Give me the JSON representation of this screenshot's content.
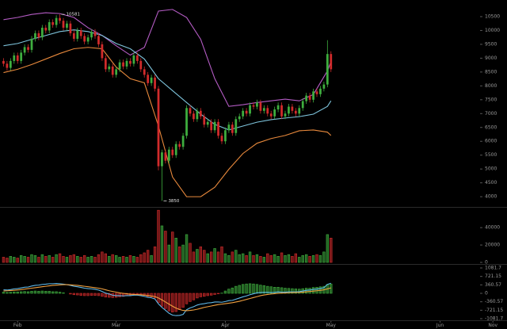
{
  "chart_data": [
    {
      "type": "candlestick",
      "x": [
        0,
        1,
        2,
        3,
        4,
        5,
        6,
        7,
        8,
        9,
        10,
        11,
        12,
        13,
        14,
        15,
        16,
        17,
        18,
        19,
        20,
        21,
        22,
        23,
        24,
        25,
        26,
        27,
        28,
        29,
        30,
        31,
        32,
        33,
        34,
        35,
        36,
        37,
        38,
        39,
        40,
        41,
        42,
        43,
        44,
        45,
        46,
        47,
        48,
        49,
        50,
        51,
        52,
        53,
        54,
        55,
        56,
        57,
        58,
        59,
        60,
        61,
        62,
        63,
        64,
        65,
        66,
        67,
        68,
        69,
        70,
        71,
        72,
        73,
        74,
        75,
        76,
        77,
        78,
        79,
        80,
        81,
        82,
        83,
        84,
        85,
        86,
        87,
        88,
        89,
        90,
        91,
        92,
        93
      ],
      "open": [
        8900,
        8800,
        8650,
        8900,
        9100,
        8900,
        9200,
        9400,
        9300,
        9700,
        9900,
        9750,
        10100,
        10000,
        10300,
        10200,
        10450,
        10350,
        10100,
        10250,
        9900,
        9700,
        10000,
        9800,
        9600,
        9750,
        9950,
        9800,
        9500,
        9000,
        8600,
        8700,
        8400,
        8600,
        8850,
        8700,
        8900,
        8800,
        9100,
        8900,
        8600,
        8400,
        8100,
        8300,
        7900,
        5100,
        5600,
        5300,
        5700,
        5500,
        5900,
        5800,
        6200,
        7200,
        7000,
        6800,
        7100,
        6900,
        6600,
        6700,
        6400,
        6700,
        6200,
        6000,
        6400,
        6600,
        6300,
        6800,
        6900,
        7100,
        7000,
        7300,
        7250,
        7400,
        7100,
        7200,
        7000,
        6900,
        7150,
        7300,
        6900,
        7000,
        7250,
        7100,
        7000,
        7200,
        7450,
        7650,
        7500,
        7800,
        7700,
        7900,
        8050,
        9150
      ],
      "high": [
        9000,
        8900,
        9000,
        9200,
        9200,
        9300,
        9500,
        9500,
        9800,
        10000,
        10000,
        10200,
        10200,
        10400,
        10400,
        10550,
        10581,
        10450,
        10350,
        10350,
        10000,
        10100,
        10100,
        9900,
        9850,
        10050,
        10050,
        9900,
        9600,
        9100,
        8800,
        8800,
        8700,
        8950,
        8950,
        9000,
        9000,
        9200,
        9200,
        9000,
        8700,
        8500,
        8400,
        8400,
        8000,
        5700,
        5700,
        5800,
        5800,
        6000,
        6000,
        6300,
        7300,
        7300,
        7100,
        7200,
        7200,
        7000,
        6800,
        6800,
        6800,
        6800,
        6300,
        6500,
        6700,
        6700,
        6900,
        7000,
        7200,
        7200,
        7400,
        7400,
        7500,
        7500,
        7300,
        7300,
        7100,
        7250,
        7400,
        7400,
        7100,
        7350,
        7350,
        7200,
        7300,
        7550,
        7750,
        7750,
        7900,
        7900,
        8000,
        8150,
        9650,
        9250
      ],
      "low": [
        8700,
        8550,
        8550,
        8800,
        8800,
        8800,
        9100,
        9200,
        9200,
        9600,
        9650,
        9650,
        9900,
        9900,
        10100,
        10100,
        10250,
        10000,
        10000,
        9800,
        9600,
        9600,
        9700,
        9500,
        9500,
        9650,
        9700,
        9400,
        8900,
        8500,
        8500,
        8300,
        8300,
        8500,
        8600,
        8600,
        8700,
        8700,
        8800,
        8500,
        8300,
        8000,
        8000,
        7800,
        4950,
        3850,
        5200,
        5200,
        5400,
        5400,
        5700,
        5700,
        6100,
        6900,
        6700,
        6700,
        6800,
        6500,
        6500,
        6300,
        6300,
        6100,
        5900,
        5900,
        6300,
        6200,
        6200,
        6700,
        6800,
        6900,
        6900,
        7150,
        7150,
        7000,
        7000,
        6900,
        6800,
        6800,
        7050,
        6800,
        6800,
        6900,
        7000,
        6900,
        6900,
        7100,
        7350,
        7400,
        7400,
        7600,
        7600,
        7800,
        7950,
        8500
      ],
      "close": [
        8800,
        8650,
        8900,
        9100,
        8900,
        9200,
        9400,
        9300,
        9700,
        9900,
        9750,
        10100,
        10000,
        10300,
        10200,
        10450,
        10350,
        10100,
        10250,
        9900,
        9700,
        10000,
        9800,
        9600,
        9750,
        9950,
        9800,
        9500,
        9000,
        8600,
        8700,
        8400,
        8600,
        8850,
        8700,
        8900,
        8800,
        9100,
        8900,
        8600,
        8400,
        8100,
        8300,
        7900,
        5100,
        5600,
        5300,
        5700,
        5500,
        5900,
        5800,
        6200,
        7200,
        7000,
        6800,
        7100,
        6900,
        6600,
        6700,
        6400,
        6700,
        6200,
        6000,
        6400,
        6600,
        6300,
        6800,
        6900,
        7100,
        7000,
        7300,
        7250,
        7400,
        7100,
        7200,
        7000,
        6900,
        7150,
        7300,
        6900,
        7000,
        7250,
        7100,
        7000,
        7200,
        7450,
        7650,
        7500,
        7800,
        7700,
        7900,
        8050,
        9150,
        8600
      ],
      "up_color": "#3fae3f",
      "down_color": "#d12b2b",
      "xlim": [
        -1,
        143
      ],
      "ylim": [
        3660,
        11100
      ],
      "yticks": [
        4000,
        4500,
        5000,
        5500,
        6000,
        6500,
        7000,
        7500,
        8000,
        8500,
        9000,
        9500,
        10000,
        10500
      ],
      "bands": {
        "x": [
          0,
          4,
          8,
          12,
          16,
          20,
          24,
          28,
          32,
          36,
          40,
          44,
          48,
          52,
          56,
          60,
          64,
          68,
          72,
          76,
          80,
          84,
          88,
          92,
          93
        ],
        "series": [
          {
            "color": "#b45cc4",
            "values": [
              10390,
              10470,
              10580,
              10640,
              10610,
              10470,
              10100,
              9820,
              9450,
              9110,
              9390,
              10700,
              10760,
              10470,
              9680,
              8260,
              7260,
              7320,
              7400,
              7460,
              7520,
              7460,
              7690,
              8540,
              8880
            ]
          },
          {
            "color": "#7ec4dc",
            "values": [
              9450,
              9530,
              9680,
              9820,
              9960,
              10020,
              9960,
              9820,
              9530,
              9340,
              8970,
              8260,
              7830,
              7400,
              6980,
              6610,
              6410,
              6550,
              6690,
              6780,
              6840,
              6890,
              6980,
              7260,
              7460
            ]
          },
          {
            "color": "#e8893c",
            "values": [
              8480,
              8600,
              8770,
              8970,
              9170,
              9340,
              9390,
              9340,
              8680,
              8260,
              8110,
              6550,
              4710,
              4000,
              4000,
              4340,
              4990,
              5560,
              5930,
              6100,
              6210,
              6380,
              6410,
              6330,
              6210
            ]
          }
        ]
      },
      "annotations": [
        {
          "x": 16,
          "y": 10581
        },
        {
          "x": 45,
          "y": 3850
        }
      ]
    },
    {
      "type": "bar",
      "x": [
        0,
        1,
        2,
        3,
        4,
        5,
        6,
        7,
        8,
        9,
        10,
        11,
        12,
        13,
        14,
        15,
        16,
        17,
        18,
        19,
        20,
        21,
        22,
        23,
        24,
        25,
        26,
        27,
        28,
        29,
        30,
        31,
        32,
        33,
        34,
        35,
        36,
        37,
        38,
        39,
        40,
        41,
        42,
        43,
        44,
        45,
        46,
        47,
        48,
        49,
        50,
        51,
        52,
        53,
        54,
        55,
        56,
        57,
        58,
        59,
        60,
        61,
        62,
        63,
        64,
        65,
        66,
        67,
        68,
        69,
        70,
        71,
        72,
        73,
        74,
        75,
        76,
        77,
        78,
        79,
        80,
        81,
        82,
        83,
        84,
        85,
        86,
        87,
        88,
        89,
        90,
        91,
        92,
        93
      ],
      "values": [
        6000,
        5000,
        7000,
        6000,
        5000,
        8000,
        7000,
        6000,
        9000,
        8000,
        6000,
        9000,
        7000,
        8000,
        6000,
        9000,
        10000,
        7000,
        6000,
        8000,
        9000,
        7000,
        6000,
        8000,
        6000,
        7000,
        6000,
        9000,
        12000,
        10000,
        7000,
        9000,
        8000,
        6000,
        7000,
        6000,
        8000,
        7000,
        6000,
        9000,
        11000,
        14000,
        8000,
        18000,
        60000,
        42000,
        36000,
        20000,
        35000,
        28000,
        18000,
        20000,
        32000,
        22000,
        12000,
        15000,
        18000,
        14000,
        10000,
        12000,
        16000,
        12000,
        18000,
        10000,
        8000,
        12000,
        14000,
        9000,
        10000,
        8000,
        12000,
        8000,
        9000,
        7000,
        6000,
        10000,
        8000,
        9000,
        7000,
        11000,
        8000,
        9000,
        7000,
        10000,
        6000,
        8000,
        9000,
        7000,
        8000,
        9000,
        8000,
        12000,
        32000,
        28000
      ],
      "xlim": [
        -1,
        143
      ],
      "ylim": [
        0,
        62000
      ],
      "yticks": [
        0,
        20000,
        40000
      ]
    },
    {
      "type": "macd",
      "x": [
        0,
        1,
        2,
        3,
        4,
        5,
        6,
        7,
        8,
        9,
        10,
        11,
        12,
        13,
        14,
        15,
        16,
        17,
        18,
        19,
        20,
        21,
        22,
        23,
        24,
        25,
        26,
        27,
        28,
        29,
        30,
        31,
        32,
        33,
        34,
        35,
        36,
        37,
        38,
        39,
        40,
        41,
        42,
        43,
        44,
        45,
        46,
        47,
        48,
        49,
        50,
        51,
        52,
        53,
        54,
        55,
        56,
        57,
        58,
        59,
        60,
        61,
        62,
        63,
        64,
        65,
        66,
        67,
        68,
        69,
        70,
        71,
        72,
        73,
        74,
        75,
        76,
        77,
        78,
        79,
        80,
        81,
        82,
        83,
        84,
        85,
        86,
        87,
        88,
        89,
        90,
        91,
        92,
        93
      ],
      "series": [
        {
          "color": "#5fb8e8",
          "values": [
            150,
            140,
            160,
            190,
            200,
            230,
            260,
            270,
            310,
            340,
            350,
            380,
            390,
            410,
            410,
            420,
            410,
            390,
            370,
            340,
            300,
            280,
            250,
            220,
            200,
            190,
            170,
            140,
            80,
            10,
            -30,
            -80,
            -100,
            -100,
            -110,
            -100,
            -100,
            -80,
            -80,
            -100,
            -130,
            -170,
            -190,
            -240,
            -450,
            -600,
            -720,
            -850,
            -930,
            -950,
            -940,
            -900,
            -700,
            -620,
            -570,
            -500,
            -460,
            -440,
            -410,
            -400,
            -370,
            -370,
            -380,
            -350,
            -310,
            -300,
            -250,
            -200,
            -150,
            -110,
            -60,
            -20,
            20,
            30,
            40,
            40,
            30,
            40,
            60,
            50,
            50,
            60,
            60,
            60,
            70,
            100,
            130,
            140,
            170,
            180,
            210,
            240,
            380,
            430
          ]
        },
        {
          "color": "#f0a040",
          "values": [
            100,
            110,
            120,
            130,
            140,
            160,
            180,
            200,
            220,
            240,
            260,
            280,
            300,
            320,
            340,
            350,
            360,
            370,
            370,
            360,
            350,
            340,
            320,
            300,
            280,
            260,
            240,
            220,
            190,
            150,
            110,
            80,
            50,
            20,
            0,
            -20,
            -40,
            -50,
            -55,
            -60,
            -75,
            -95,
            -115,
            -140,
            -200,
            -280,
            -370,
            -460,
            -550,
            -630,
            -690,
            -730,
            -740,
            -730,
            -710,
            -680,
            -640,
            -600,
            -570,
            -540,
            -510,
            -480,
            -460,
            -440,
            -420,
            -400,
            -370,
            -340,
            -300,
            -260,
            -220,
            -180,
            -140,
            -100,
            -70,
            -50,
            -30,
            -15,
            0,
            10,
            15,
            25,
            30,
            35,
            40,
            50,
            65,
            80,
            95,
            110,
            130,
            150,
            190,
            230
          ]
        }
      ],
      "histogram": [
        50,
        40,
        50,
        60,
        60,
        70,
        80,
        70,
        90,
        100,
        90,
        100,
        90,
        90,
        70,
        70,
        50,
        20,
        0,
        -30,
        -60,
        -70,
        -90,
        -100,
        -100,
        -90,
        -90,
        -100,
        -130,
        -160,
        -170,
        -180,
        -170,
        -150,
        -130,
        -100,
        -80,
        -50,
        -40,
        -60,
        -90,
        -130,
        -150,
        -200,
        -400,
        -550,
        -650,
        -750,
        -800,
        -780,
        -700,
        -600,
        -450,
        -350,
        -280,
        -200,
        -150,
        -130,
        -100,
        -80,
        -50,
        -20,
        10,
        100,
        180,
        230,
        300,
        340,
        380,
        400,
        410,
        400,
        380,
        350,
        330,
        300,
        280,
        260,
        260,
        240,
        220,
        210,
        200,
        190,
        180,
        200,
        220,
        220,
        250,
        260,
        280,
        300,
        380,
        400
      ],
      "xlim": [
        -1,
        143
      ],
      "ylim": [
        -1183,
        1183
      ],
      "yticks": [
        1081.7,
        721.15,
        360.57,
        0,
        -360.57,
        -721.15,
        -1081.7
      ],
      "xticks": [
        {
          "value": 4,
          "label": "Feb"
        },
        {
          "value": 32,
          "label": "Mar"
        },
        {
          "value": 63,
          "label": "Apr"
        },
        {
          "value": 93,
          "label": "May"
        },
        {
          "value": 124,
          "label": "Jun"
        },
        {
          "value": 139,
          "label": "Nov"
        }
      ]
    }
  ]
}
